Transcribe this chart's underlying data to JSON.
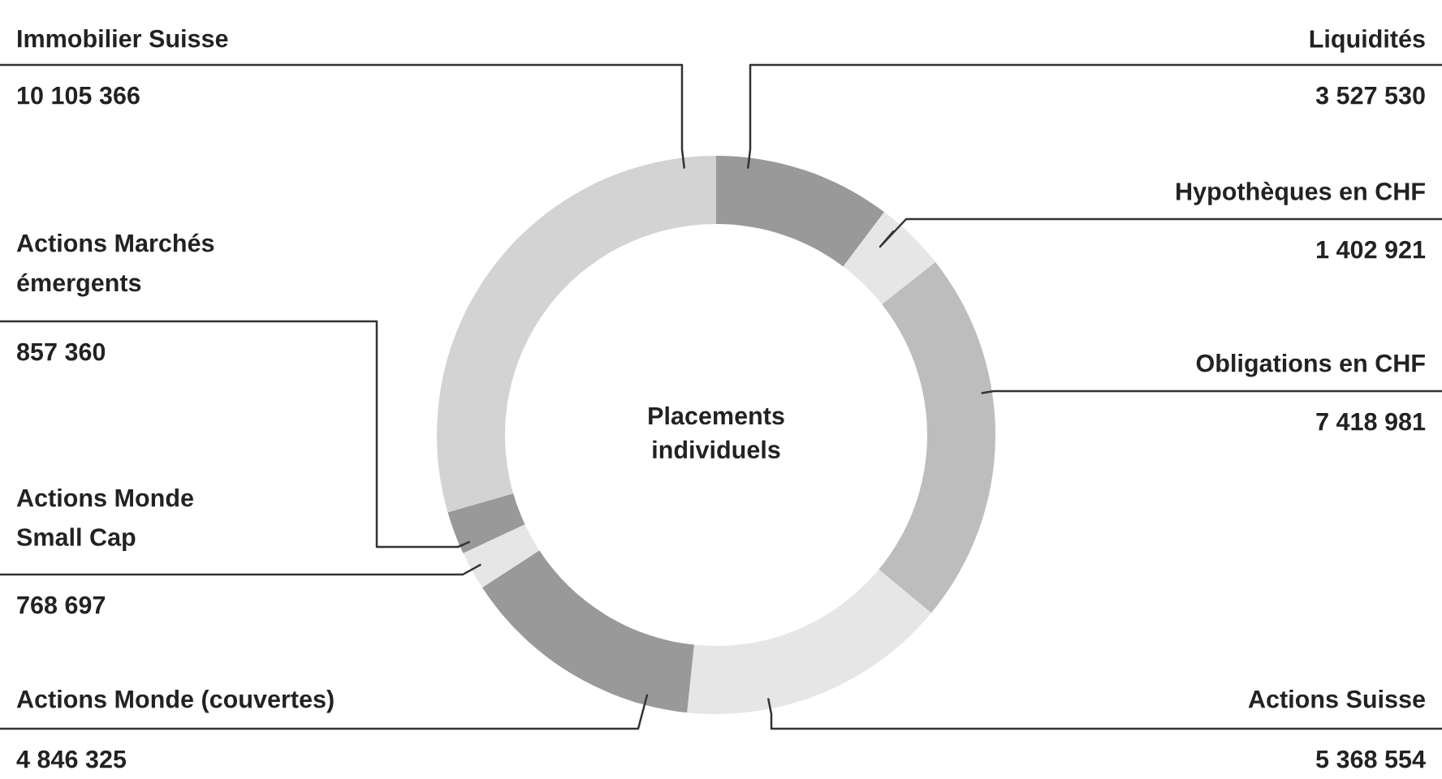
{
  "chart_data": {
    "type": "donut",
    "categories": [
      "Liquidités",
      "Hypothèques en CHF",
      "Obligations en CHF",
      "Actions Suisse",
      "Actions Monde (couvertes)",
      "Actions Monde\nSmall Cap",
      "Actions Marchés\némergents",
      "Immobilier Suisse"
    ],
    "values": [
      3527530,
      1402921,
      7418981,
      5368554,
      4846325,
      768697,
      857360,
      10105366
    ],
    "colors": [
      "#999999",
      "#e6e6e6",
      "#bdbdbd",
      "#e6e6e6",
      "#999999",
      "#e6e6e6",
      "#999999",
      "#d3d3d3"
    ],
    "data_labels": true,
    "annotations": [
      "Placements\nindividuels"
    ]
  }
}
